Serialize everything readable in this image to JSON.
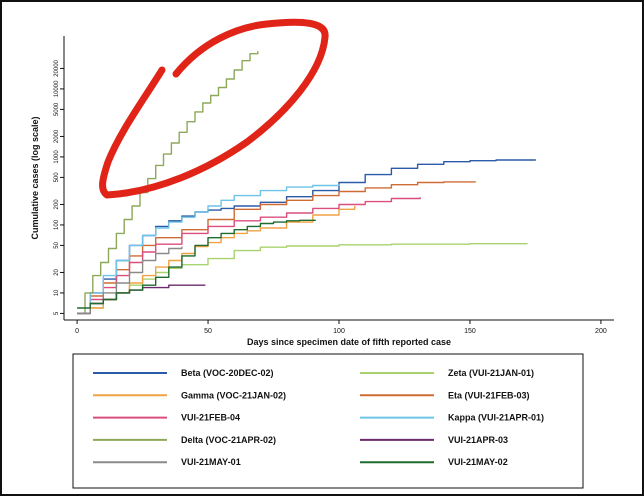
{
  "chart_data": {
    "type": "line",
    "xlabel": "Days since specimen date of fifth reported case",
    "ylabel": "Cumulative cases (log scale)",
    "y_scale": "log",
    "xlim": [
      -5,
      205
    ],
    "ylim": [
      4,
      60000
    ],
    "x_ticks": [
      0,
      50,
      100,
      150,
      200
    ],
    "y_ticks": [
      5,
      10,
      20,
      50,
      100,
      200,
      500,
      1000,
      2000,
      5000,
      10000,
      20000
    ],
    "y_tick_labels": [
      "5",
      "10",
      "20",
      "50",
      "100",
      "200",
      "500",
      "1000",
      "2000",
      "5000",
      "10000",
      "20000"
    ],
    "grid": false,
    "legend_position": "bottom",
    "series": [
      {
        "name": "Beta (VOC-20DEC-02)",
        "color": "#2b5aa8",
        "x": [
          0,
          5,
          10,
          15,
          20,
          25,
          30,
          35,
          40,
          45,
          50,
          55,
          60,
          70,
          80,
          90,
          100,
          110,
          120,
          130,
          140,
          150,
          160,
          175
        ],
        "values": [
          5,
          10,
          16,
          30,
          50,
          70,
          95,
          115,
          135,
          155,
          165,
          175,
          190,
          215,
          260,
          320,
          420,
          550,
          680,
          780,
          850,
          880,
          900,
          920
        ]
      },
      {
        "name": "Zeta (VUI-21JAN-01)",
        "color": "#a8d26e",
        "x": [
          0,
          5,
          10,
          15,
          20,
          25,
          30,
          35,
          40,
          50,
          60,
          70,
          80,
          100,
          120,
          150,
          172
        ],
        "values": [
          5,
          6,
          8,
          10,
          13,
          16,
          20,
          23,
          26,
          32,
          42,
          47,
          49,
          51,
          52,
          53,
          53
        ]
      },
      {
        "name": "Gamma (VOC-21JAN-02)",
        "color": "#f0a243",
        "x": [
          0,
          5,
          10,
          15,
          20,
          25,
          30,
          35,
          40,
          45,
          50,
          55,
          60,
          65,
          70,
          80,
          90,
          100,
          106
        ],
        "values": [
          5,
          6,
          8,
          10,
          14,
          18,
          24,
          30,
          38,
          48,
          55,
          65,
          75,
          82,
          90,
          110,
          140,
          170,
          190
        ]
      },
      {
        "name": "Eta (VUI-21FEB-03)",
        "color": "#cf6b34",
        "x": [
          0,
          5,
          10,
          15,
          20,
          25,
          30,
          40,
          50,
          60,
          70,
          80,
          90,
          100,
          110,
          120,
          130,
          140,
          152
        ],
        "values": [
          5,
          9,
          14,
          22,
          35,
          50,
          65,
          85,
          120,
          170,
          200,
          230,
          270,
          310,
          350,
          390,
          420,
          430,
          440
        ]
      },
      {
        "name": "VUI-21FEB-04",
        "color": "#d94e7c",
        "x": [
          0,
          5,
          10,
          15,
          20,
          25,
          30,
          40,
          50,
          60,
          70,
          80,
          90,
          100,
          110,
          120,
          131
        ],
        "values": [
          5,
          8,
          12,
          18,
          28,
          40,
          52,
          75,
          95,
          115,
          130,
          150,
          175,
          200,
          220,
          245,
          255
        ]
      },
      {
        "name": "Kappa (VUI-21APR-01)",
        "color": "#6ec4e8",
        "x": [
          0,
          5,
          10,
          15,
          20,
          25,
          30,
          35,
          40,
          45,
          50,
          55,
          60,
          70,
          80,
          90,
          100
        ],
        "values": [
          5,
          10,
          18,
          30,
          50,
          70,
          90,
          110,
          130,
          155,
          190,
          230,
          270,
          320,
          360,
          380,
          395
        ]
      },
      {
        "name": "Delta (VOC-21APR-02)",
        "color": "#8ea85a",
        "x": [
          0,
          3,
          6,
          9,
          12,
          15,
          18,
          21,
          24,
          27,
          30,
          33,
          36,
          39,
          42,
          45,
          48,
          51,
          54,
          57,
          60,
          63,
          66,
          69
        ],
        "values": [
          5,
          10,
          18,
          28,
          45,
          75,
          120,
          190,
          300,
          480,
          750,
          1100,
          1600,
          2300,
          3300,
          4600,
          6200,
          8000,
          10500,
          14000,
          19000,
          26000,
          33000,
          36000
        ]
      },
      {
        "name": "VUI-21APR-03",
        "color": "#6b2a6e",
        "x": [
          0,
          5,
          10,
          15,
          20,
          25,
          30,
          35,
          40,
          49
        ],
        "values": [
          5,
          7,
          8,
          10,
          11,
          12,
          12,
          13,
          13,
          13
        ]
      },
      {
        "name": "VUI-21MAY-01",
        "color": "#8a8a8a",
        "x": [
          0,
          5,
          10,
          15,
          20,
          25,
          30,
          35,
          40
        ],
        "values": [
          5,
          7,
          10,
          14,
          20,
          30,
          38,
          45,
          48
        ]
      },
      {
        "name": "VUI-21MAY-02",
        "color": "#1f6b2e",
        "x": [
          0,
          5,
          10,
          15,
          20,
          25,
          30,
          35,
          40,
          45,
          50,
          55,
          60,
          65,
          70,
          75,
          80,
          85,
          91
        ],
        "values": [
          6,
          7,
          8,
          10,
          11,
          13,
          17,
          24,
          35,
          50,
          65,
          75,
          85,
          95,
          105,
          110,
          115,
          117,
          118
        ]
      }
    ]
  },
  "annotation": {
    "color": "#e02418"
  },
  "colors": {
    "axis": "#111111",
    "frame": "#111111"
  }
}
